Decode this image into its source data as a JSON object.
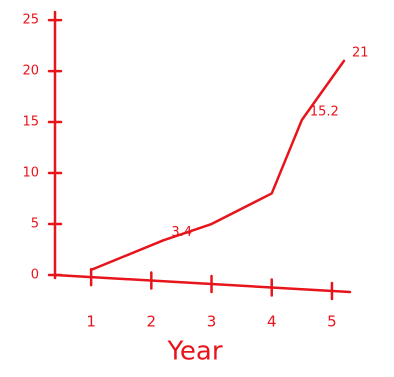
{
  "chart_data": {
    "type": "line",
    "x_label": "Year",
    "color": "#e8141c",
    "x": [
      1,
      2.2,
      3,
      4,
      4.5,
      5.2
    ],
    "values": [
      0.5,
      3.4,
      5,
      8,
      15.2,
      21
    ],
    "labeled_points": [
      1,
      4,
      5
    ],
    "xlim": [
      0.4,
      5.3
    ],
    "xticks": [
      1,
      2,
      3,
      4,
      5
    ],
    "ylim": [
      0,
      25.5
    ],
    "yticks": [
      0,
      5,
      10,
      15,
      20,
      25
    ]
  }
}
